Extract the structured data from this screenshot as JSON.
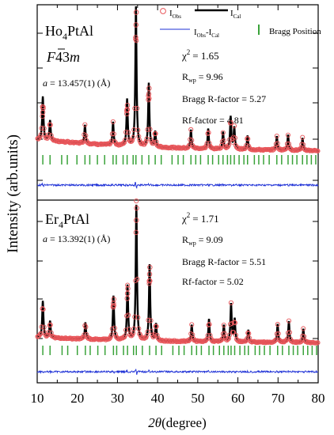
{
  "chart_data": {
    "type": "line",
    "xlabel_symbol": "2θ",
    "xlabel_unit": "(degree)",
    "ylabel": "Intensity (arb.units)",
    "xlim": [
      10,
      80
    ],
    "x_ticks": [
      10,
      20,
      30,
      40,
      50,
      60,
      70,
      80
    ],
    "legend": {
      "obs_label": "I",
      "obs_sub": "Obs",
      "cal_label": "I",
      "cal_sub": "Cal",
      "diff_label": "I",
      "diff_sub": "Obs",
      "diff_label2": "-I",
      "diff_sub2": "Cal",
      "bragg_label": "Bragg Position"
    },
    "colors": {
      "observed": "#e8565a",
      "calculated": "#000000",
      "difference": "#1c2fd6",
      "bragg": "#3aa33a"
    },
    "panels": [
      {
        "compound": "Ho",
        "compound_sub": "4",
        "compound_rest": "PtAl",
        "space_group_italic_1": "F",
        "space_group_bar": "4",
        "space_group_rest": "3",
        "space_group_italic_2": "m",
        "lattice_var": "a",
        "lattice_text": "= 13.457(1) (Å)",
        "chi2_label": "χ",
        "chi2_sup": "2",
        "chi2_value": "=  1.65",
        "rwp_label": "R",
        "rwp_sub": "wp",
        "rwp_value": "= 9.96",
        "bragg_r": "Bragg R-factor =  5.27",
        "rf": "Rf-factor =  4.81",
        "background": 16,
        "peaks": [
          {
            "x": 11.4,
            "y": 56
          },
          {
            "x": 13.2,
            "y": 26
          },
          {
            "x": 21.9,
            "y": 24
          },
          {
            "x": 28.9,
            "y": 30
          },
          {
            "x": 32.4,
            "y": 60
          },
          {
            "x": 34.6,
            "y": 180
          },
          {
            "x": 37.8,
            "y": 82
          },
          {
            "x": 39.4,
            "y": 20
          },
          {
            "x": 48.3,
            "y": 24
          },
          {
            "x": 52.6,
            "y": 26
          },
          {
            "x": 56.3,
            "y": 22
          },
          {
            "x": 58.2,
            "y": 42
          },
          {
            "x": 59.1,
            "y": 28
          },
          {
            "x": 62.4,
            "y": 18
          },
          {
            "x": 69.7,
            "y": 18
          },
          {
            "x": 72.5,
            "y": 20
          },
          {
            "x": 76.1,
            "y": 16
          }
        ],
        "bragg_positions": [
          11.4,
          13.2,
          16.1,
          17.5,
          19.9,
          21.9,
          23.1,
          25.0,
          26.8,
          28.9,
          29.7,
          31.4,
          32.4,
          33.9,
          34.6,
          36.1,
          37.8,
          39.4,
          40.9,
          43.6,
          45.1,
          46.4,
          48.3,
          49.5,
          50.7,
          52.6,
          53.7,
          55.2,
          56.3,
          57.4,
          58.2,
          59.1,
          60.3,
          61.5,
          62.4,
          64.1,
          65.2,
          66.4,
          67.8,
          69.7,
          70.9,
          72.5,
          73.6,
          74.7,
          76.1,
          77.2,
          78.3,
          79.4
        ]
      },
      {
        "compound": "Er",
        "compound_sub": "4",
        "compound_rest": "PtAl",
        "lattice_var": "a",
        "lattice_text": "= 13.392(1) (Å)",
        "chi2_label": "χ",
        "chi2_sup": "2",
        "chi2_value": "=  1.71",
        "rwp_label": "R",
        "rwp_sub": "wp",
        "rwp_value": "= 9.09",
        "bragg_r": "Bragg R-factor = 5.51",
        "rf": "Rf-factor =  5.02",
        "background": 8,
        "peaks": [
          {
            "x": 11.4,
            "y": 48
          },
          {
            "x": 13.2,
            "y": 22
          },
          {
            "x": 22.0,
            "y": 22
          },
          {
            "x": 29.0,
            "y": 58
          },
          {
            "x": 32.5,
            "y": 72
          },
          {
            "x": 34.7,
            "y": 178
          },
          {
            "x": 38.0,
            "y": 100
          },
          {
            "x": 39.6,
            "y": 22
          },
          {
            "x": 48.5,
            "y": 22
          },
          {
            "x": 52.8,
            "y": 30
          },
          {
            "x": 56.5,
            "y": 22
          },
          {
            "x": 58.3,
            "y": 50
          },
          {
            "x": 59.2,
            "y": 30
          },
          {
            "x": 62.6,
            "y": 16
          },
          {
            "x": 69.9,
            "y": 24
          },
          {
            "x": 72.7,
            "y": 28
          },
          {
            "x": 76.3,
            "y": 18
          }
        ],
        "bragg_positions": [
          11.4,
          13.2,
          16.2,
          17.6,
          20.0,
          22.0,
          23.2,
          25.1,
          26.9,
          29.0,
          29.8,
          31.5,
          32.5,
          34.0,
          34.7,
          36.2,
          38.0,
          39.6,
          41.0,
          43.8,
          45.3,
          46.6,
          48.5,
          49.7,
          50.9,
          52.8,
          53.9,
          55.4,
          56.5,
          57.6,
          58.3,
          59.2,
          60.5,
          61.7,
          62.6,
          64.3,
          65.4,
          66.6,
          68.0,
          69.9,
          71.1,
          72.7,
          73.8,
          74.9,
          76.3,
          77.4,
          78.5,
          79.6
        ]
      }
    ]
  }
}
